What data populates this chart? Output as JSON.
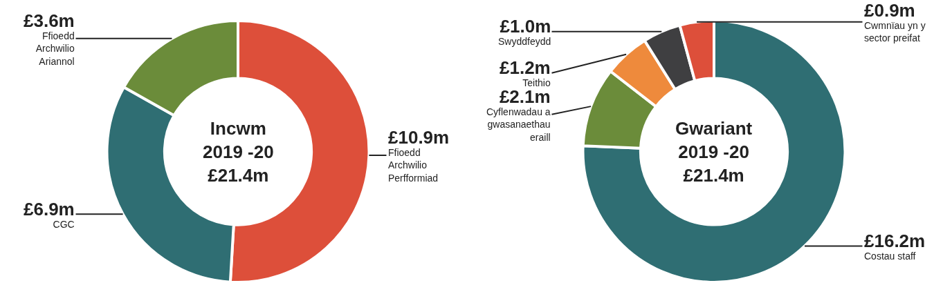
{
  "chart_data": [
    {
      "type": "donut",
      "title": "Incwm",
      "subtitle": "2019 -20",
      "annotations": [
        "£21.4m"
      ],
      "categories": [
        "Ffioedd Archwilio Perfformiad",
        "CGC",
        "Ffioedd Archwilio Ariannol"
      ],
      "values": [
        10.9,
        6.9,
        3.6
      ],
      "value_labels": [
        "£10.9m",
        "£6.9m",
        "£3.6m"
      ],
      "colors": [
        "#dd4f3a",
        "#2f6e73",
        "#6b8c3a"
      ]
    },
    {
      "type": "donut",
      "title": "Gwariant",
      "subtitle": "2019 -20",
      "annotations": [
        "£21.4m"
      ],
      "categories": [
        "Costau staff",
        "Cyflenwadau a gwasanaethau eraill",
        "Teithio",
        "Swyddfeydd",
        "Cwmnïau yn y sector preifat"
      ],
      "values": [
        16.2,
        2.1,
        1.2,
        1.0,
        0.9
      ],
      "value_labels": [
        "£16.2m",
        "£2.1m",
        "£1.2m",
        "£1.0m",
        "£0.9m"
      ],
      "colors": [
        "#2f6e73",
        "#6b8c3a",
        "#ee8a3c",
        "#3f3f41",
        "#dd4f3a"
      ]
    }
  ]
}
